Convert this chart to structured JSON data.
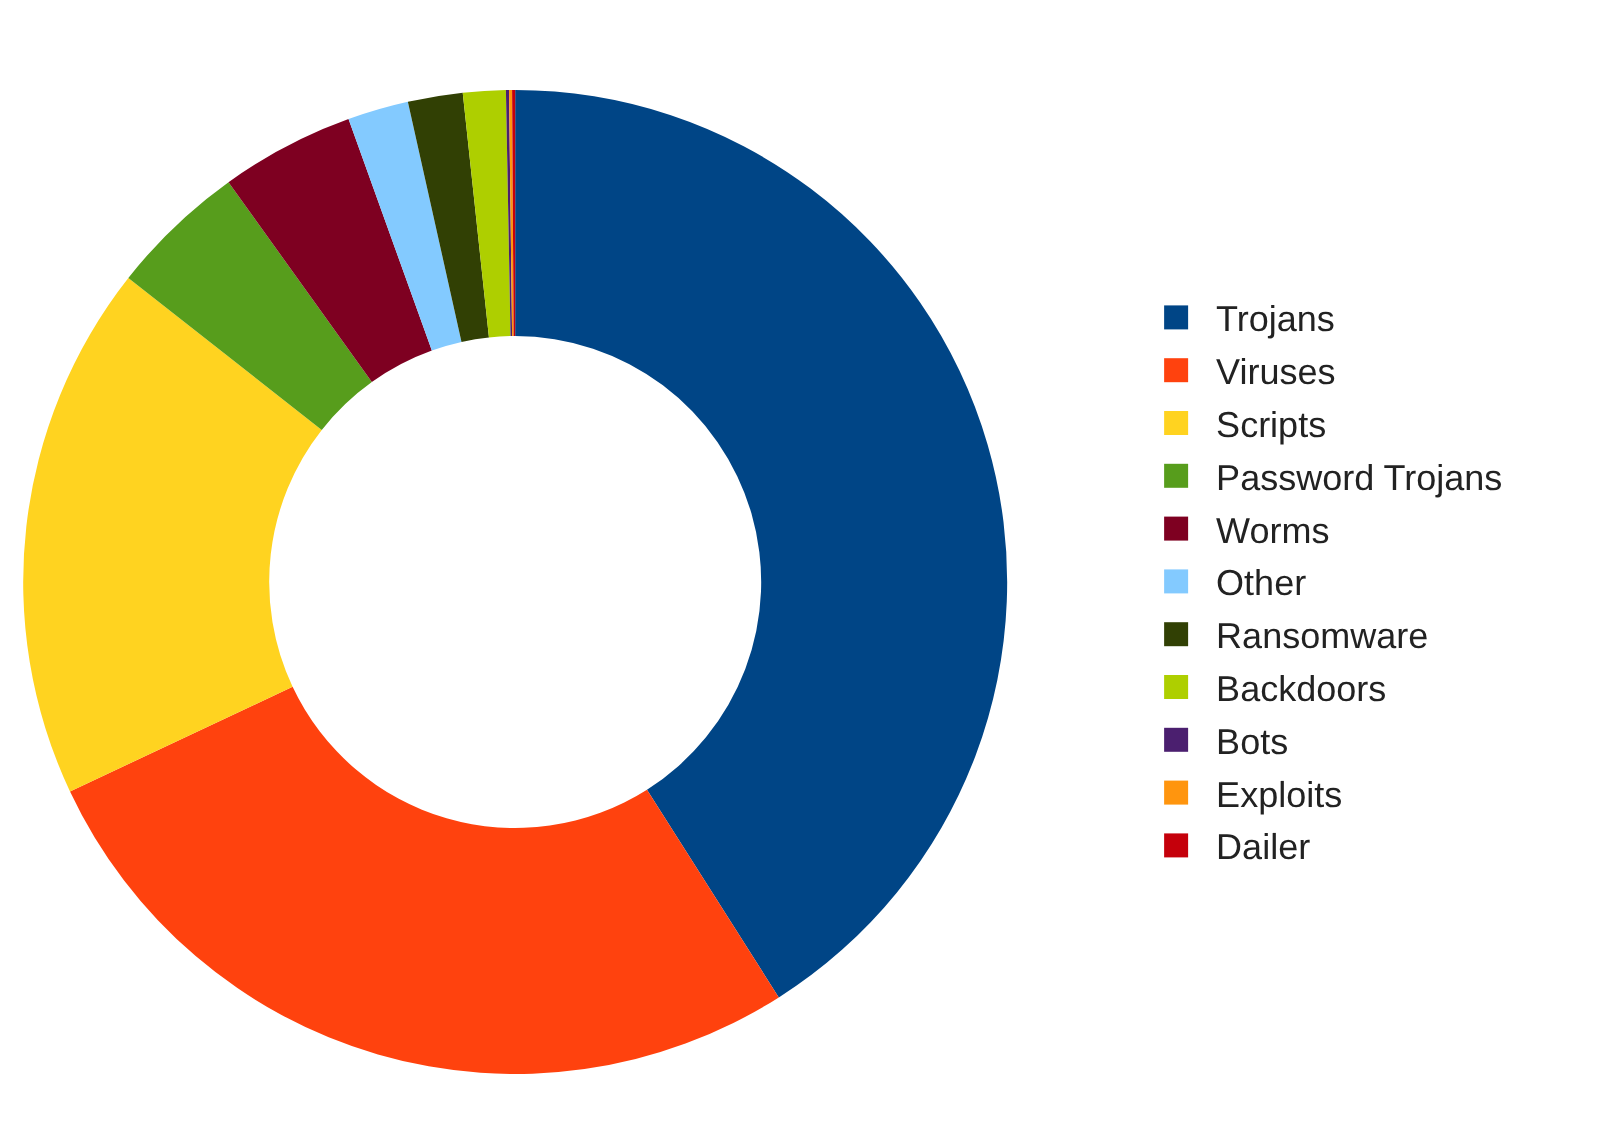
{
  "chart_data": {
    "type": "donut",
    "categories": [
      "Trojans",
      "Viruses",
      "Scripts",
      "Password Trojans",
      "Worms",
      "Other",
      "Ransomware",
      "Backdoors",
      "Bots",
      "Exploits",
      "Dailer"
    ],
    "values": [
      41,
      27,
      17.6,
      4.5,
      4.4,
      2,
      1.8,
      1.4,
      0.1,
      0.1,
      0.1
    ],
    "colors": [
      "#004586",
      "#ff420e",
      "#ffd320",
      "#579d1c",
      "#7e0021",
      "#83caff",
      "#314004",
      "#aecf00",
      "#4b1f6f",
      "#ff950e",
      "#c5000b"
    ],
    "legend": "right"
  }
}
